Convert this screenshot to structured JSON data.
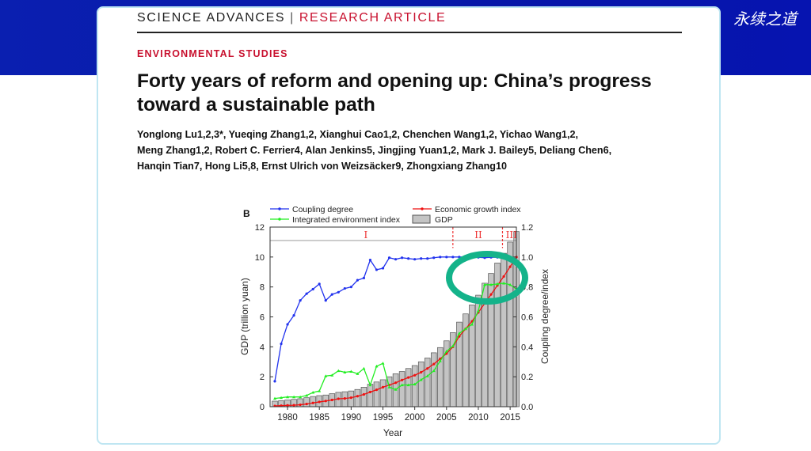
{
  "banner": {
    "logo": "永续之道"
  },
  "header": {
    "journal": "SCIENCE ADVANCES",
    "separator": "|",
    "article_type": "RESEARCH ARTICLE"
  },
  "section": "ENVIRONMENTAL STUDIES",
  "title_line1": "Forty years of reform and opening up: China’s progress",
  "title_line2": "toward a sustainable path",
  "authors": [
    "Yonglong Lu1,2,3*, Yueqing Zhang1,2, Xianghui Cao1,2, Chenchen Wang1,2, Yichao Wang1,2,",
    "Meng Zhang1,2, Robert C. Ferrier4, Alan Jenkins5, Jingjing Yuan1,2, Mark J. Bailey5, Deliang Chen6,",
    "Hanqin Tian7, Hong Li5,8, Ernst Ulrich von Weizsäcker9, Zhongxiang Zhang10"
  ],
  "chart_data": {
    "type": "bar+line",
    "panel_label": "B",
    "xlabel": "Year",
    "ylabel": "GDP (trillion yuan)",
    "y2label": "Coupling degree/index",
    "xlim": [
      1977.3,
      2016.8
    ],
    "ylim": [
      0,
      12
    ],
    "y2lim": [
      0,
      1.2
    ],
    "xticks": [
      1980,
      1985,
      1990,
      1995,
      2000,
      2005,
      2010,
      2015
    ],
    "yticks": [
      0,
      2,
      4,
      6,
      8,
      10,
      12
    ],
    "y2ticks": [
      "0.0",
      "0.2",
      "0.4",
      "0.6",
      "0.8",
      "1.0",
      "1.2"
    ],
    "phases": [
      {
        "label": "I",
        "from": 1978,
        "to": 2006
      },
      {
        "label": "II",
        "from": 2006,
        "to": 2013.8
      },
      {
        "label": "III",
        "from": 2013.8,
        "to": 2016.8
      }
    ],
    "x": [
      1978,
      1979,
      1980,
      1981,
      1982,
      1983,
      1984,
      1985,
      1986,
      1987,
      1988,
      1989,
      1990,
      1991,
      1992,
      1993,
      1994,
      1995,
      1996,
      1997,
      1998,
      1999,
      2000,
      2001,
      2002,
      2003,
      2004,
      2005,
      2006,
      2007,
      2008,
      2009,
      2010,
      2011,
      2012,
      2013,
      2014,
      2015,
      2016
    ],
    "series": [
      {
        "name": "GDP",
        "type": "bar",
        "axis": "left",
        "color": "#c0c0c0",
        "values": [
          0.37,
          0.4,
          0.45,
          0.49,
          0.53,
          0.6,
          0.68,
          0.74,
          0.78,
          0.87,
          0.96,
          1.0,
          1.05,
          1.15,
          1.3,
          1.5,
          1.65,
          1.8,
          2.0,
          2.2,
          2.35,
          2.55,
          2.75,
          3.0,
          3.25,
          3.6,
          3.95,
          4.4,
          4.95,
          5.65,
          6.2,
          6.8,
          7.45,
          8.25,
          8.9,
          9.6,
          10.25,
          11.0,
          11.7
        ]
      },
      {
        "name": "Coupling degree",
        "type": "line",
        "axis": "right",
        "color": "#2233ee",
        "values": [
          0.17,
          0.42,
          0.55,
          0.61,
          0.71,
          0.755,
          0.785,
          0.82,
          0.71,
          0.75,
          0.765,
          0.79,
          0.8,
          0.845,
          0.86,
          0.98,
          0.915,
          0.925,
          0.995,
          0.985,
          0.995,
          0.99,
          0.985,
          0.99,
          0.99,
          0.995,
          1.0,
          1.0,
          1.0,
          1.0,
          1.0,
          0.998,
          0.998,
          0.995,
          0.998,
          0.998,
          0.998,
          0.985,
          0.97
        ]
      },
      {
        "name": "Economic growth index",
        "type": "line",
        "axis": "right",
        "color": "#ee1111",
        "values": [
          0.005,
          0.007,
          0.009,
          0.01,
          0.013,
          0.018,
          0.025,
          0.032,
          0.038,
          0.045,
          0.053,
          0.055,
          0.06,
          0.07,
          0.082,
          0.098,
          0.113,
          0.13,
          0.145,
          0.16,
          0.178,
          0.195,
          0.21,
          0.23,
          0.255,
          0.285,
          0.32,
          0.355,
          0.4,
          0.47,
          0.52,
          0.57,
          0.63,
          0.69,
          0.75,
          0.81,
          0.87,
          0.935,
          1.0
        ]
      },
      {
        "name": "Integrated environment index",
        "type": "line",
        "axis": "right",
        "color": "#22ee22",
        "values": [
          0.055,
          0.06,
          0.065,
          0.065,
          0.065,
          0.075,
          0.095,
          0.105,
          0.205,
          0.21,
          0.24,
          0.23,
          0.235,
          0.22,
          0.255,
          0.145,
          0.27,
          0.29,
          0.13,
          0.115,
          0.145,
          0.145,
          0.15,
          0.18,
          0.205,
          0.24,
          0.305,
          0.37,
          0.405,
          0.49,
          0.52,
          0.55,
          0.64,
          0.815,
          0.815,
          0.82,
          0.825,
          0.815,
          0.785
        ]
      }
    ],
    "legend": [
      "Coupling degree",
      "Economic growth index",
      "Integrated environment index",
      "GDP"
    ],
    "legend_position": "top",
    "annotation": {
      "shape": "ellipse",
      "color": "#14b38a"
    }
  }
}
